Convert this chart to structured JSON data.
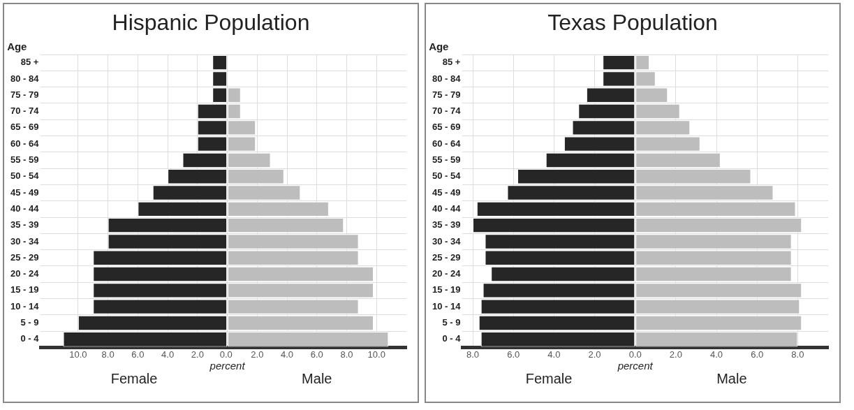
{
  "chart_data": [
    {
      "type": "bar",
      "title": "Hispanic Population",
      "xlabel": "percent",
      "ylabel": "Age",
      "orientation": "horizontal",
      "stacked": true,
      "grid": true,
      "legend": false,
      "categories": [
        "85 +",
        "80 - 84",
        "75 - 79",
        "70 - 74",
        "65 - 69",
        "60 - 64",
        "55 - 59",
        "50 - 54",
        "45 - 49",
        "40 - 44",
        "35 - 39",
        "30 - 34",
        "25 - 29",
        "20 - 24",
        "15 - 19",
        "10 - 14",
        "5 - 9",
        "0 - 4"
      ],
      "series": [
        {
          "name": "Female",
          "color": "#262626",
          "values": [
            -1.0,
            -1.0,
            -1.0,
            -2.0,
            -2.0,
            -2.0,
            -3.0,
            -4.0,
            -5.0,
            -6.0,
            -8.0,
            -8.0,
            -9.0,
            -9.0,
            -9.0,
            -9.0,
            -10.0,
            -11.0
          ]
        },
        {
          "name": "Male",
          "color": "#bdbdbd",
          "values": [
            0,
            0,
            0.9,
            0.9,
            1.9,
            1.9,
            2.9,
            3.8,
            4.9,
            6.8,
            7.8,
            8.8,
            8.8,
            9.8,
            9.8,
            8.8,
            9.8,
            10.8
          ]
        }
      ],
      "xlim": [
        -12.5,
        12
      ],
      "xticks": [
        {
          "value": -10,
          "label": "10.0"
        },
        {
          "value": -8,
          "label": "8.0"
        },
        {
          "value": -6,
          "label": "6.0"
        },
        {
          "value": -4,
          "label": "4.0"
        },
        {
          "value": -2,
          "label": "2.0"
        },
        {
          "value": 0,
          "label": "0.0 "
        },
        {
          "value": 2,
          "label": "2.0"
        },
        {
          "value": 4,
          "label": "4.0"
        },
        {
          "value": 6,
          "label": "6.0"
        },
        {
          "value": 8,
          "label": "8.0"
        },
        {
          "value": 10,
          "label": "10.0"
        }
      ]
    },
    {
      "type": "bar",
      "title": "Texas Population",
      "xlabel": "percent",
      "ylabel": "Age",
      "orientation": "horizontal",
      "stacked": true,
      "grid": true,
      "legend": false,
      "categories": [
        "85 +",
        "80 - 84",
        "75 - 79",
        "70 - 74",
        "65 - 69",
        "60 - 64",
        "55 - 59",
        "50 - 54",
        "45 - 49",
        "40 - 44",
        "35 - 39",
        "30 - 34",
        "25 - 29",
        "20 - 24",
        "15 - 19",
        "10 - 14",
        "5 - 9",
        "0 - 4"
      ],
      "series": [
        {
          "name": "Female",
          "color": "#262626",
          "values": [
            -1.6,
            -1.6,
            -2.4,
            -2.8,
            -3.1,
            -3.5,
            -4.4,
            -5.8,
            -6.3,
            -7.8,
            -8.0,
            -7.4,
            -7.4,
            -7.1,
            -7.5,
            -7.6,
            -7.7,
            -7.6
          ]
        },
        {
          "name": "Male",
          "color": "#bdbdbd",
          "values": [
            0.7,
            1.0,
            1.6,
            2.2,
            2.7,
            3.2,
            4.2,
            5.7,
            6.8,
            7.9,
            8.2,
            7.7,
            7.7,
            7.7,
            8.2,
            8.1,
            8.2,
            8.0
          ]
        }
      ],
      "xlim": [
        -8.5,
        9.5
      ],
      "xticks": [
        {
          "value": -8,
          "label": "8.0"
        },
        {
          "value": -6,
          "label": "6.0"
        },
        {
          "value": -4,
          "label": "4.0"
        },
        {
          "value": -2,
          "label": "2.0"
        },
        {
          "value": 0,
          "label": "0.0"
        },
        {
          "value": 2,
          "label": "2.0"
        },
        {
          "value": 4,
          "label": "4.0"
        },
        {
          "value": 6,
          "label": "6.0"
        },
        {
          "value": 8,
          "label": "8.0"
        }
      ]
    }
  ]
}
